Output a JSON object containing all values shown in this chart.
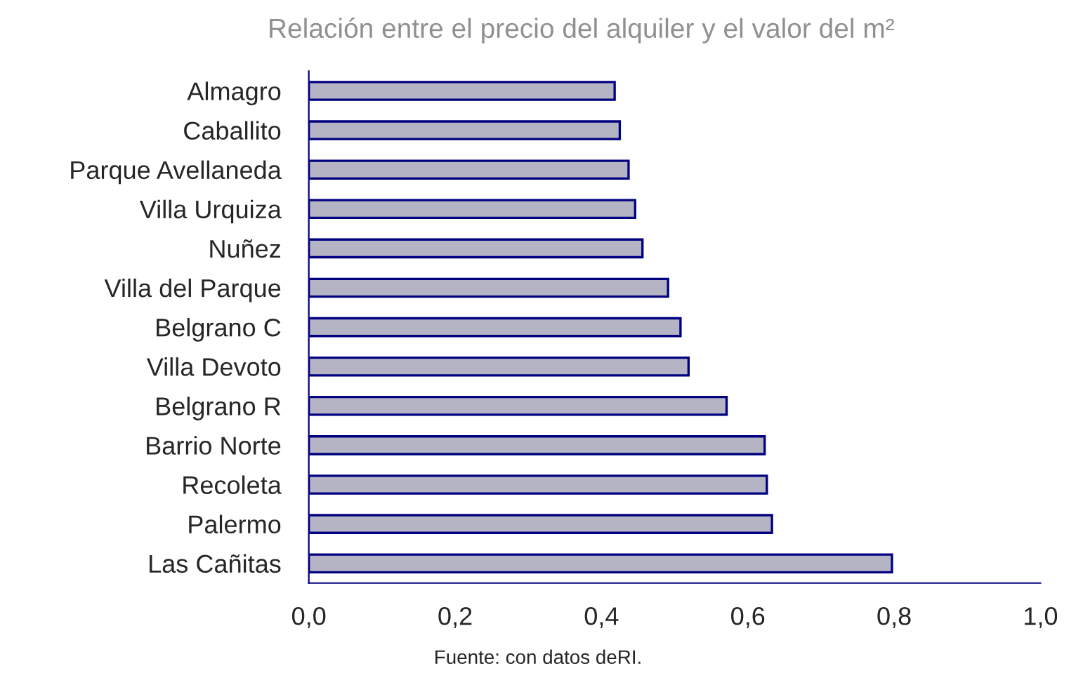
{
  "chart_data": {
    "type": "bar",
    "orientation": "horizontal",
    "title": "Relación entre el precio del alquiler y el valor del m²",
    "categories": [
      "Almagro",
      "Caballito",
      "Parque Avellaneda",
      "Villa Urquiza",
      "Nuñez",
      "Villa del Parque",
      "Belgrano C",
      "Villa Devoto",
      "Belgrano R",
      "Barrio Norte",
      "Recoleta",
      "Palermo",
      "Las Cañitas"
    ],
    "values": [
      0.418,
      0.425,
      0.437,
      0.446,
      0.456,
      0.491,
      0.508,
      0.519,
      0.571,
      0.623,
      0.626,
      0.633,
      0.797
    ],
    "color": "#b4b4c4",
    "xlim": [
      0,
      1
    ],
    "xticks": [
      {
        "value": 0,
        "label": "0,0"
      },
      {
        "value": 0.2,
        "label": "0,2"
      },
      {
        "value": 0.4,
        "label": "0,4"
      },
      {
        "value": 0.6,
        "label": "0,6"
      },
      {
        "value": 0.8,
        "label": "0,8"
      },
      {
        "value": 1,
        "label": "1,0"
      }
    ],
    "grid": false,
    "legend": false,
    "annotations": [
      "Fuente: con datos deRI."
    ]
  }
}
